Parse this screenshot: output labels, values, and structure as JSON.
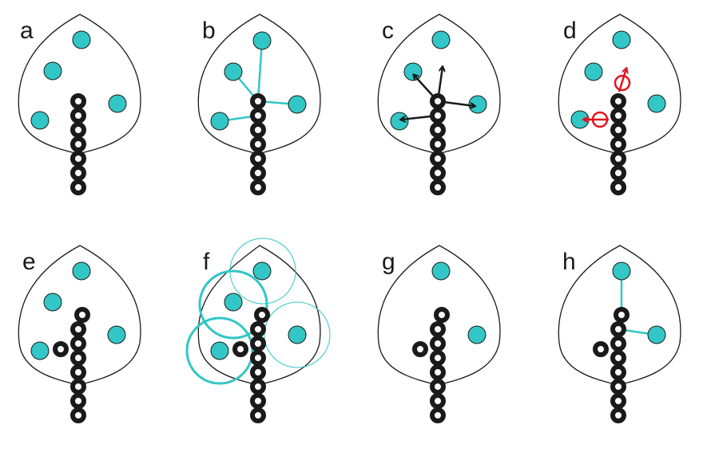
{
  "panels": [
    {
      "id": "a",
      "label": "a"
    },
    {
      "id": "b",
      "label": "b"
    },
    {
      "id": "c",
      "label": "c"
    },
    {
      "id": "d",
      "label": "d"
    },
    {
      "id": "e",
      "label": "e"
    },
    {
      "id": "f",
      "label": "f"
    },
    {
      "id": "g",
      "label": "g"
    },
    {
      "id": "h",
      "label": "h"
    }
  ],
  "colors": {
    "auxin_source": "#33c6c6",
    "vein_node": "#1a1a1a",
    "growth_direction": "#1a1a1a",
    "new_node_marker": "#e0141e",
    "outline": "#1a1a1a"
  },
  "icons": [
    "auxin-source-dot",
    "vein-node-ring",
    "direction-arrow",
    "kill-radius-circle"
  ]
}
